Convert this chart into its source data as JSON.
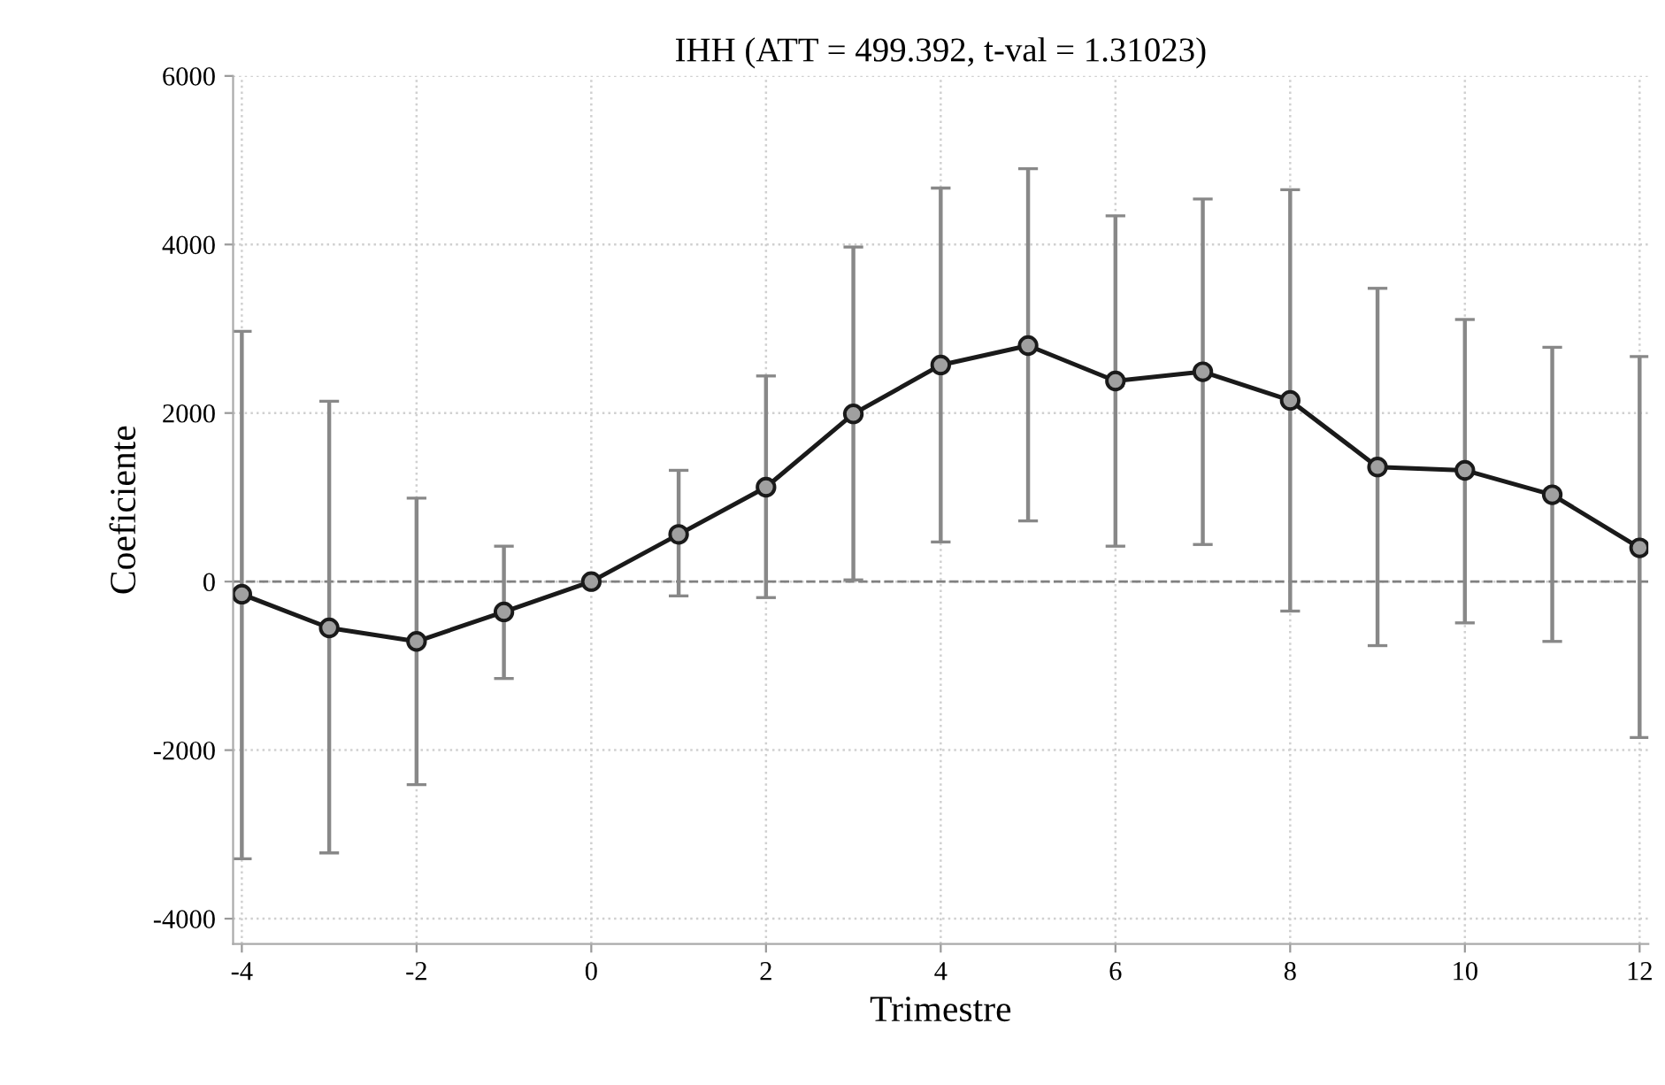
{
  "chart_data": {
    "type": "line",
    "title": "IHH (ATT = 499.392, t-val = 1.31023)",
    "xlabel": "Trimestre",
    "ylabel": "Coeficiente",
    "x": [
      -4,
      -3,
      -2,
      -1,
      0,
      1,
      2,
      3,
      4,
      5,
      6,
      7,
      8,
      9,
      10,
      11,
      12
    ],
    "series": [
      {
        "color": "#1a1a1a",
        "values": [
          -150,
          -550,
          -710,
          -360,
          0,
          560,
          1120,
          1990,
          2570,
          2800,
          2380,
          2490,
          2150,
          1360,
          1320,
          1030,
          400
        ],
        "errors": [
          [
            -3290,
            2970
          ],
          [
            -3220,
            2140
          ],
          [
            -2410,
            990
          ],
          [
            -1150,
            420
          ],
          null,
          [
            -170,
            1320
          ],
          [
            -190,
            2440
          ],
          [
            20,
            3970
          ],
          [
            470,
            4670
          ],
          [
            720,
            4900
          ],
          [
            420,
            4340
          ],
          [
            440,
            4540
          ],
          [
            -350,
            4650
          ],
          [
            -760,
            3480
          ],
          [
            -490,
            3110
          ],
          [
            -710,
            2780
          ],
          [
            -1850,
            2670
          ]
        ]
      }
    ],
    "xlim": [
      -4.1,
      12.1
    ],
    "ylim": [
      -4300,
      6000
    ],
    "xticks": [
      -4,
      -2,
      0,
      2,
      4,
      6,
      8,
      10,
      12
    ],
    "yticks": [
      -4000,
      -2000,
      0,
      2000,
      4000,
      6000
    ],
    "grid": true,
    "marker": "circle",
    "line_style": "solid",
    "ref_lines": [
      {
        "axis": "y",
        "value": 0,
        "color": "#808080",
        "line_style": "dashed"
      }
    ]
  }
}
